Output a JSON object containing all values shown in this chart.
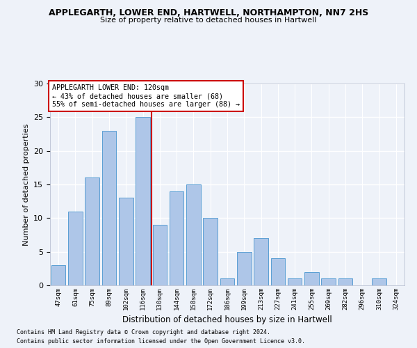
{
  "title1": "APPLEGARTH, LOWER END, HARTWELL, NORTHAMPTON, NN7 2HS",
  "title2": "Size of property relative to detached houses in Hartwell",
  "xlabel": "Distribution of detached houses by size in Hartwell",
  "ylabel": "Number of detached properties",
  "categories": [
    "47sqm",
    "61sqm",
    "75sqm",
    "89sqm",
    "102sqm",
    "116sqm",
    "130sqm",
    "144sqm",
    "158sqm",
    "172sqm",
    "186sqm",
    "199sqm",
    "213sqm",
    "227sqm",
    "241sqm",
    "255sqm",
    "269sqm",
    "282sqm",
    "296sqm",
    "310sqm",
    "324sqm"
  ],
  "values": [
    3,
    11,
    16,
    23,
    13,
    25,
    9,
    14,
    15,
    10,
    1,
    5,
    7,
    4,
    1,
    2,
    1,
    1,
    0,
    1,
    0
  ],
  "bar_color": "#aec6e8",
  "bar_edge_color": "#5a9fd4",
  "property_line_x": 5.5,
  "annotation_line1": "APPLEGARTH LOWER END: 120sqm",
  "annotation_line2": "← 43% of detached houses are smaller (68)",
  "annotation_line3": "55% of semi-detached houses are larger (88) →",
  "annotation_box_color": "#ffffff",
  "annotation_box_edge": "#cc0000",
  "vline_color": "#cc0000",
  "ylim": [
    0,
    30
  ],
  "yticks": [
    0,
    5,
    10,
    15,
    20,
    25,
    30
  ],
  "footer1": "Contains HM Land Registry data © Crown copyright and database right 2024.",
  "footer2": "Contains public sector information licensed under the Open Government Licence v3.0.",
  "bg_color": "#eef2f9",
  "grid_color": "#ffffff"
}
